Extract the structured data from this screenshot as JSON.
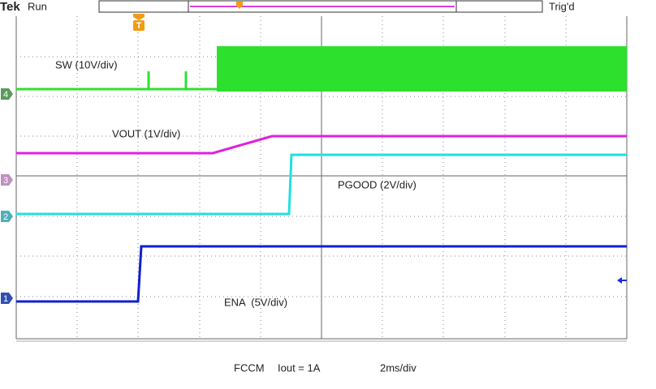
{
  "header": {
    "brand": "Tek",
    "status": "Run",
    "trigger_state": "Trig'd",
    "trigger_marker": "T"
  },
  "channels": [
    {
      "number": "4",
      "label": "SW (10V/div)"
    },
    {
      "number": "3",
      "label": "VOUT (1V/div)"
    },
    {
      "number": "2",
      "label": "PGOOD (2V/div)"
    },
    {
      "number": "1",
      "label": "ENA  (5V/div)"
    }
  ],
  "footer": {
    "mode": "FCCM",
    "load": "Iout = 1A",
    "timebase": "2ms/div"
  }
}
